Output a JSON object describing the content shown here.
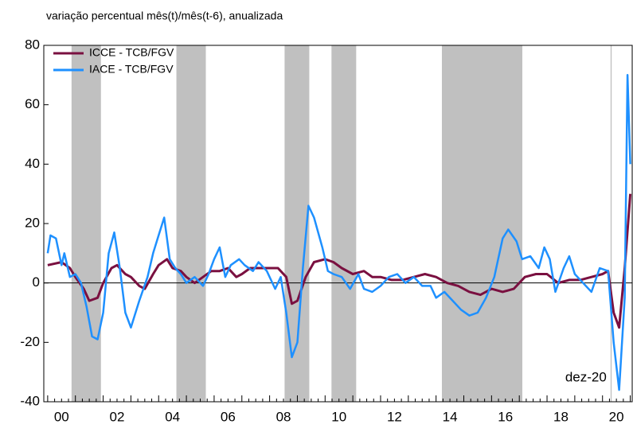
{
  "chart_data": {
    "type": "line",
    "subtitle": "variação percentual mês(t)/mês(t-6), anualizada",
    "annotation": "dez-20",
    "xlim": [
      1999.86,
      2021.07
    ],
    "xticks": [
      {
        "value": 2000.5,
        "label": "00"
      },
      {
        "value": 2002.5,
        "label": "02"
      },
      {
        "value": 2004.5,
        "label": "04"
      },
      {
        "value": 2006.5,
        "label": "06"
      },
      {
        "value": 2008.5,
        "label": "08"
      },
      {
        "value": 2010.5,
        "label": "10"
      },
      {
        "value": 2012.5,
        "label": "12"
      },
      {
        "value": 2014.5,
        "label": "14"
      },
      {
        "value": 2016.5,
        "label": "16"
      },
      {
        "value": 2018.5,
        "label": "18"
      },
      {
        "value": 2020.5,
        "label": "20"
      }
    ],
    "ylim": [
      -40,
      80
    ],
    "yticks": [
      -40,
      -20,
      0,
      20,
      40,
      60,
      80
    ],
    "shaded": [
      [
        2000.86,
        2001.92
      ],
      [
        2004.64,
        2005.7
      ],
      [
        2008.54,
        2009.43
      ],
      [
        2010.23,
        2011.12
      ],
      [
        2014.21,
        2017.11
      ],
      [
        2020.29,
        2020.33
      ]
    ],
    "shade_color": "#c0c0c0",
    "legend": "upper left",
    "series": [
      {
        "name": "ICCE - TCB/FGV",
        "color": "#7a1040",
        "x": [
          2000.0,
          2000.5,
          2000.8,
          2001.0,
          2001.3,
          2001.5,
          2001.8,
          2002.0,
          2002.3,
          2002.5,
          2002.8,
          2003.0,
          2003.3,
          2003.5,
          2003.8,
          2004.0,
          2004.3,
          2004.5,
          2004.8,
          2005.0,
          2005.3,
          2005.6,
          2005.9,
          2006.2,
          2006.5,
          2006.8,
          2007.0,
          2007.3,
          2007.6,
          2007.9,
          2008.3,
          2008.6,
          2008.8,
          2009.0,
          2009.3,
          2009.6,
          2010.0,
          2010.3,
          2010.6,
          2011.0,
          2011.4,
          2011.7,
          2012.0,
          2012.4,
          2012.8,
          2013.2,
          2013.6,
          2014.0,
          2014.4,
          2014.8,
          2015.2,
          2015.6,
          2016.0,
          2016.4,
          2016.8,
          2017.2,
          2017.6,
          2018.0,
          2018.4,
          2018.8,
          2019.2,
          2019.6,
          2020.0,
          2020.2,
          2020.4,
          2020.6,
          2020.8,
          2021.0
        ],
        "values": [
          6,
          7,
          5,
          2,
          -2,
          -6,
          -5,
          0,
          5,
          6,
          3,
          2,
          -1,
          -2,
          3,
          6,
          8,
          5,
          4,
          2,
          0,
          2,
          4,
          4,
          5,
          2,
          3,
          5,
          5,
          5,
          5,
          2,
          -7,
          -6,
          2,
          7,
          8,
          7,
          5,
          3,
          4,
          2,
          2,
          1,
          1,
          2,
          3,
          2,
          0,
          -1,
          -3,
          -4,
          -2,
          -3,
          -2,
          2,
          3,
          3,
          0,
          1,
          1,
          2,
          3,
          4,
          -10,
          -15,
          5,
          30
        ]
      },
      {
        "name": "IACE - TCB/FGV",
        "color": "#1e90ff",
        "x": [
          2000.0,
          2000.1,
          2000.3,
          2000.5,
          2000.6,
          2000.8,
          2001.0,
          2001.2,
          2001.4,
          2001.6,
          2001.8,
          2002.0,
          2002.2,
          2002.4,
          2002.6,
          2002.8,
          2003.0,
          2003.3,
          2003.6,
          2003.8,
          2004.0,
          2004.2,
          2004.4,
          2004.6,
          2004.8,
          2005.0,
          2005.3,
          2005.6,
          2005.8,
          2006.0,
          2006.2,
          2006.4,
          2006.6,
          2006.9,
          2007.1,
          2007.4,
          2007.6,
          2007.9,
          2008.2,
          2008.4,
          2008.6,
          2008.8,
          2009.0,
          2009.2,
          2009.4,
          2009.6,
          2009.9,
          2010.1,
          2010.3,
          2010.6,
          2010.9,
          2011.2,
          2011.4,
          2011.7,
          2012.0,
          2012.3,
          2012.6,
          2012.9,
          2013.2,
          2013.5,
          2013.8,
          2014.0,
          2014.3,
          2014.6,
          2014.9,
          2015.2,
          2015.5,
          2015.8,
          2016.1,
          2016.4,
          2016.6,
          2016.9,
          2017.1,
          2017.4,
          2017.7,
          2017.9,
          2018.1,
          2018.3,
          2018.6,
          2018.8,
          2019.0,
          2019.3,
          2019.6,
          2019.9,
          2020.2,
          2020.4,
          2020.6,
          2020.8,
          2020.9,
          2021.0
        ],
        "values": [
          10,
          16,
          15,
          6,
          10,
          2,
          3,
          0,
          -8,
          -18,
          -19,
          -10,
          10,
          17,
          5,
          -10,
          -15,
          -6,
          2,
          10,
          16,
          22,
          8,
          5,
          3,
          0,
          2,
          -1,
          3,
          8,
          12,
          2,
          6,
          8,
          6,
          4,
          7,
          4,
          -2,
          2,
          -10,
          -25,
          -20,
          5,
          26,
          22,
          12,
          4,
          3,
          2,
          -2,
          3,
          -2,
          -3,
          -1,
          2,
          3,
          0,
          2,
          -1,
          -1,
          -5,
          -3,
          -6,
          -9,
          -11,
          -10,
          -5,
          2,
          15,
          18,
          14,
          8,
          9,
          5,
          12,
          8,
          -3,
          5,
          9,
          3,
          0,
          -3,
          5,
          4,
          -20,
          -36,
          -5,
          70,
          40
        ]
      }
    ]
  }
}
